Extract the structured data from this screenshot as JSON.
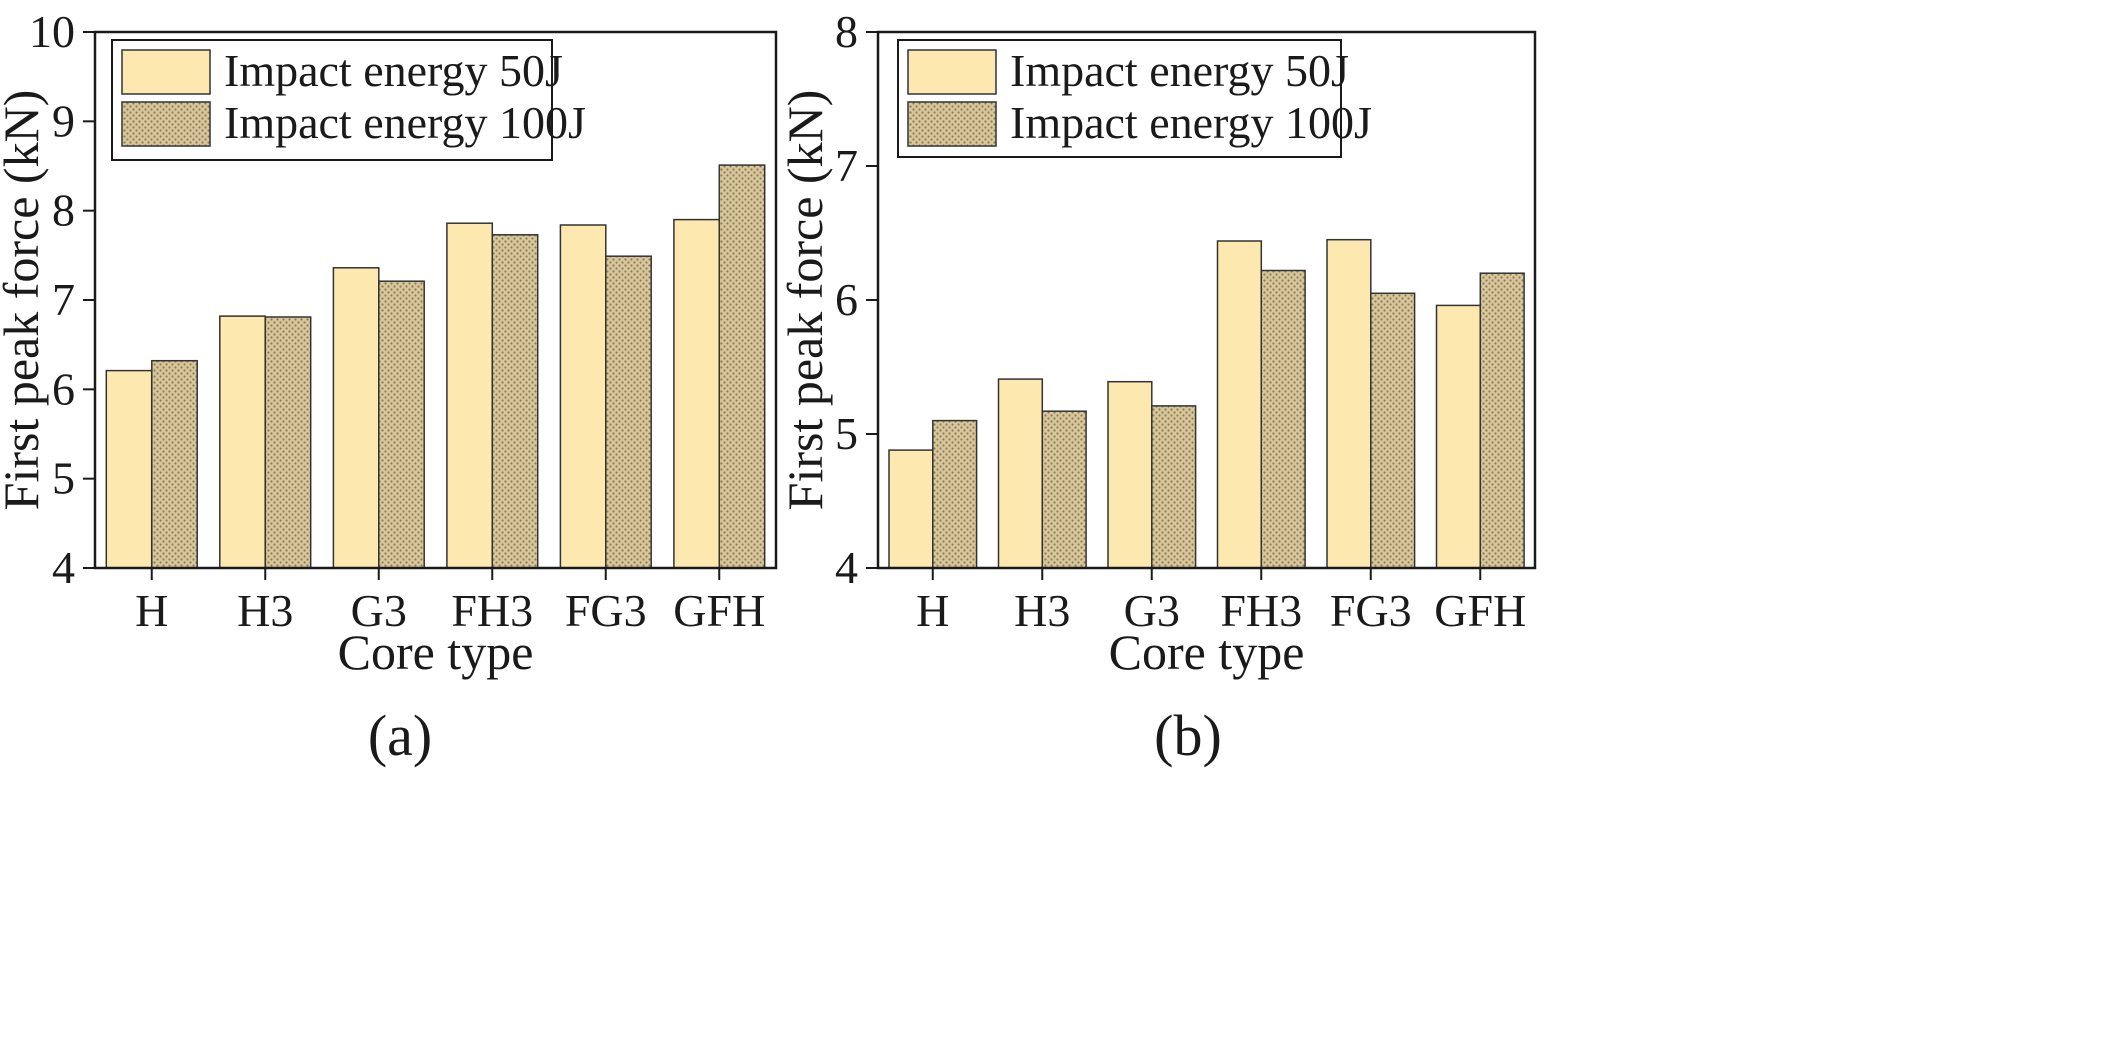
{
  "chart_data": [
    {
      "type": "bar",
      "panel_label": "(a)",
      "xlabel": "Core type",
      "ylabel": "First peak force (kN)",
      "ylim": [
        4,
        10
      ],
      "yticks": [
        "4",
        "5",
        "6",
        "7",
        "8",
        "9",
        "10"
      ],
      "categories": [
        "H",
        "H3",
        "G3",
        "FH3",
        "FG3",
        "GFH"
      ],
      "series": [
        {
          "name": "Impact energy 50J",
          "values": [
            6.21,
            6.82,
            7.36,
            7.86,
            7.84,
            7.9
          ]
        },
        {
          "name": "Impact energy 100J",
          "values": [
            6.32,
            6.81,
            7.21,
            7.73,
            7.49,
            8.51
          ]
        }
      ],
      "legend_position": "top-left"
    },
    {
      "type": "bar",
      "panel_label": "(b)",
      "xlabel": "Core type",
      "ylabel": "First peak force (kN)",
      "ylim": [
        4,
        8
      ],
      "yticks": [
        "4",
        "5",
        "6",
        "7",
        "8"
      ],
      "categories": [
        "H",
        "H3",
        "G3",
        "FH3",
        "FG3",
        "GFH"
      ],
      "series": [
        {
          "name": "Impact energy 50J",
          "values": [
            4.88,
            5.41,
            5.39,
            6.44,
            6.45,
            5.96
          ]
        },
        {
          "name": "Impact energy 100J",
          "values": [
            5.1,
            5.17,
            5.21,
            6.22,
            6.05,
            6.2
          ]
        }
      ],
      "legend_position": "top-left"
    }
  ],
  "colors": {
    "series_50J": "#fde8b0",
    "series_100J_base": "#d8c79a",
    "series_100J_dots": "#8a7a55",
    "axis": "#1a1a1a"
  }
}
